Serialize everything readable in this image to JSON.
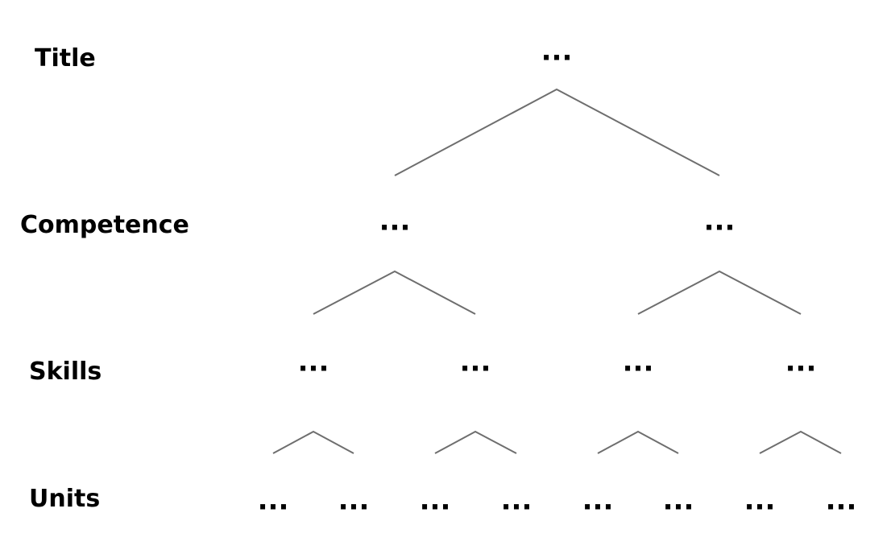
{
  "levels": {
    "title": "Title",
    "competence": "Competence",
    "skills": "Skills",
    "units": "Units"
  },
  "nodes": {
    "title": [
      "···"
    ],
    "competence": [
      "···",
      "···"
    ],
    "skills": [
      "···",
      "···",
      "···",
      "···"
    ],
    "units": [
      "···",
      "···",
      "···",
      "···",
      "···",
      "···",
      "···",
      "···"
    ]
  },
  "colors": {
    "edge": "#6e6e6e",
    "text": "#000000",
    "background": "#ffffff"
  }
}
